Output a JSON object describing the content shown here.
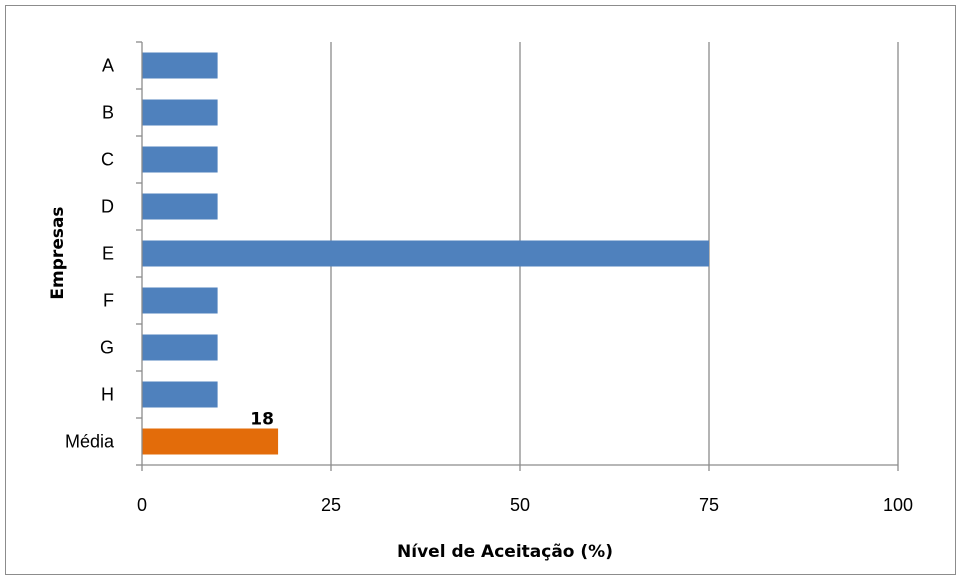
{
  "chart_data": {
    "type": "bar",
    "orientation": "horizontal",
    "categories": [
      "A",
      "B",
      "C",
      "D",
      "E",
      "F",
      "G",
      "H",
      "Média"
    ],
    "values": [
      10,
      10,
      10,
      10,
      75,
      10,
      10,
      10,
      18
    ],
    "bar_colors": [
      "#4f81bd",
      "#4f81bd",
      "#4f81bd",
      "#4f81bd",
      "#4f81bd",
      "#4f81bd",
      "#4f81bd",
      "#4f81bd",
      "#e36c0a"
    ],
    "data_labels": [
      {
        "category": "Média",
        "text": "18"
      }
    ],
    "xlabel": "Nível de Aceitação (%)",
    "ylabel": "Empresas",
    "xlim": [
      0,
      100
    ],
    "xticks": [
      "0",
      "25",
      "50",
      "75",
      "100"
    ],
    "grid": "vertical"
  }
}
